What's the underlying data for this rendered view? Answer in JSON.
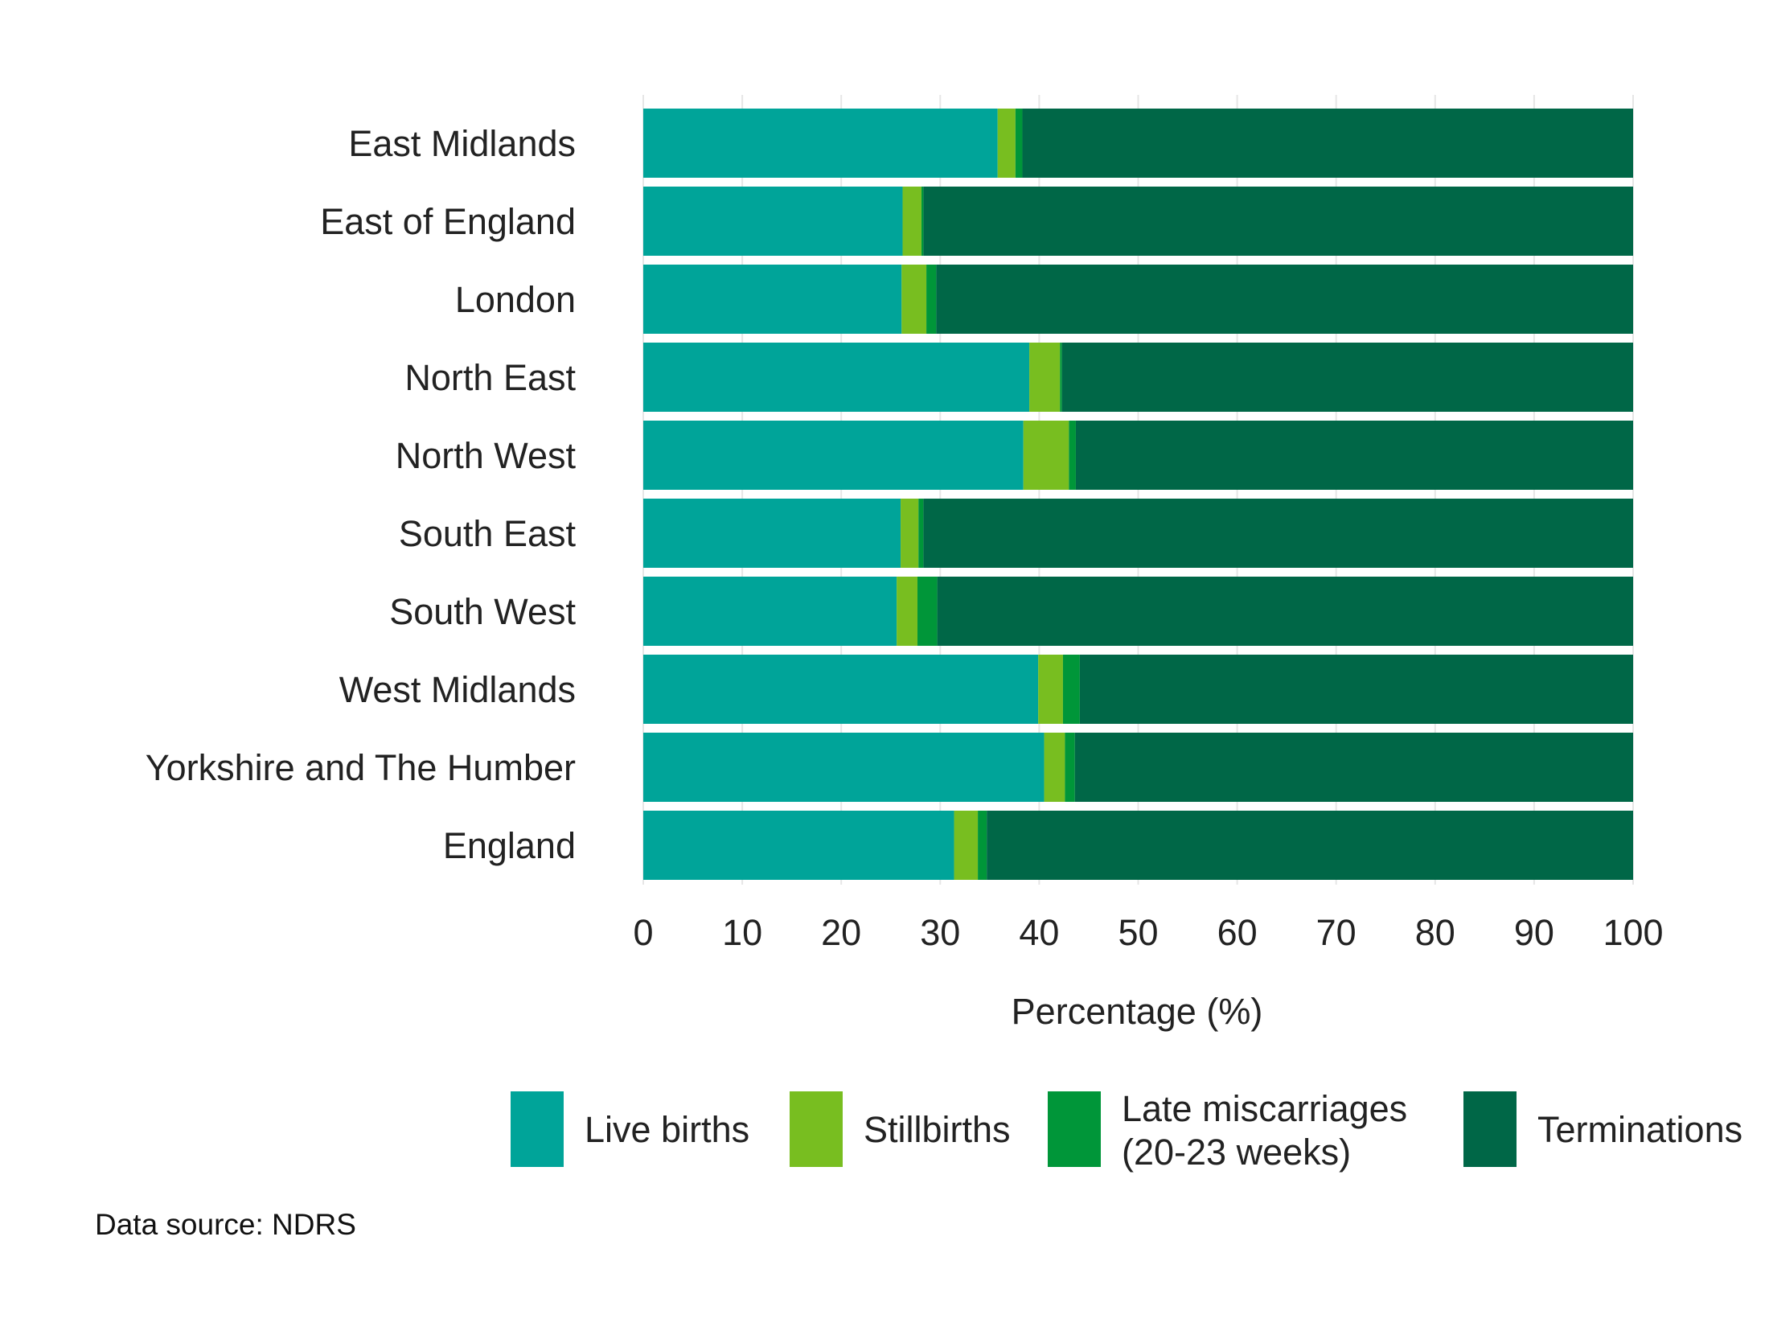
{
  "chart_data": {
    "type": "bar",
    "orientation": "horizontal",
    "stacked": true,
    "categories": [
      "East Midlands",
      "East of England",
      "London",
      "North East",
      "North West",
      "South East",
      "South West",
      "West Midlands",
      "Yorkshire and The Humber",
      "England"
    ],
    "series": [
      {
        "name": "Live births",
        "color": "#00a499",
        "values": [
          35.8,
          26.2,
          26.1,
          39.0,
          38.4,
          26.0,
          25.6,
          39.9,
          40.5,
          31.4
        ]
      },
      {
        "name": "Stillbirths",
        "color": "#78be20",
        "values": [
          1.8,
          1.9,
          2.5,
          3.1,
          4.6,
          1.8,
          2.1,
          2.5,
          2.1,
          2.4
        ]
      },
      {
        "name": "Late miscarriages\n(20-23 weeks)",
        "color": "#009639",
        "values": [
          0.7,
          0.2,
          1.0,
          0.2,
          0.7,
          0.5,
          2.0,
          1.7,
          1.0,
          0.9
        ]
      },
      {
        "name": "Terminations",
        "color": "#006747",
        "values": [
          61.7,
          71.7,
          70.4,
          57.7,
          56.3,
          71.7,
          70.3,
          55.9,
          56.4,
          65.3
        ]
      }
    ],
    "xlabel": "Percentage (%)",
    "ylabel": "",
    "xlim": [
      0,
      100
    ],
    "xticks": [
      "0",
      "10",
      "20",
      "30",
      "40",
      "50",
      "60",
      "70",
      "80",
      "90",
      "100"
    ],
    "grid": "vertical, light",
    "legend_position": "bottom"
  },
  "source_note": "Data source: NDRS"
}
